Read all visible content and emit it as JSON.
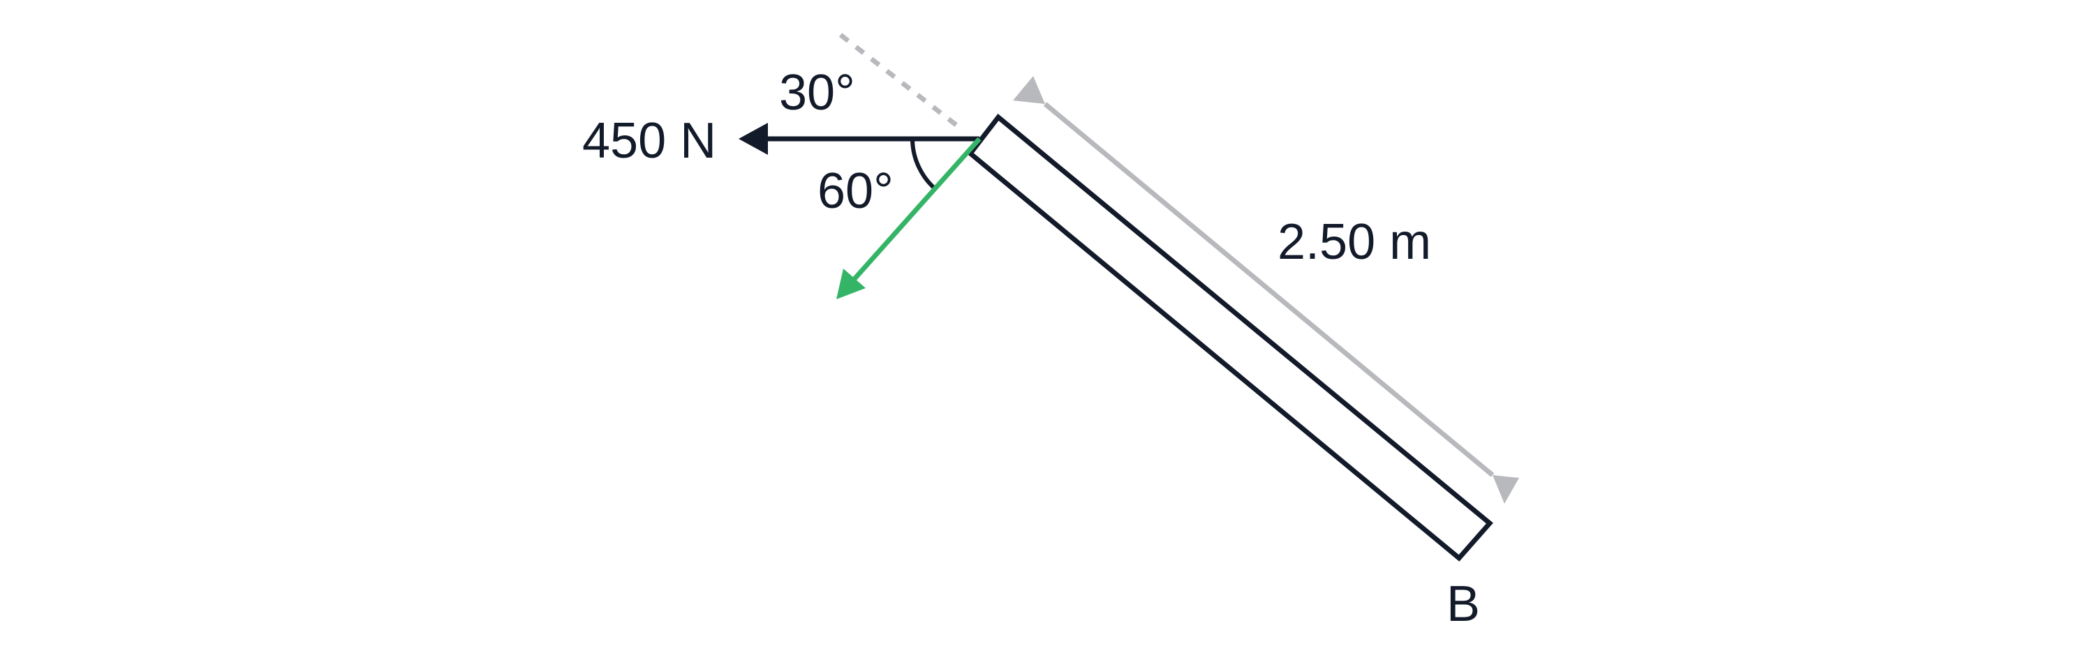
{
  "labels": {
    "force": "450 N",
    "angle_top": "30°",
    "angle_bottom": "60°",
    "length": "2.50 m",
    "end_point": "B"
  },
  "colors": {
    "ink": "#131a2a",
    "dimension": "#b8b9bc",
    "component_arrow": "#34b466",
    "dashed_reference": "#b8b9bc"
  }
}
